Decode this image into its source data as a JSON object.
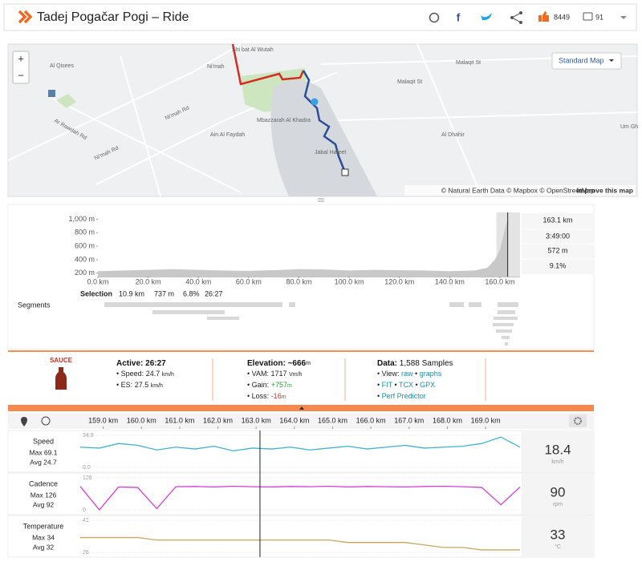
{
  "header": {
    "title": "Tadej Pogačar Pogi – Ride",
    "likes": 8449,
    "comments": 91
  },
  "map": {
    "labels": [
      "Al Qisees",
      "Ni'mah",
      "Shi bat Al Wutah",
      "Malaqit St",
      "Malaqit St",
      "Ar Rawdah Rd",
      "Ni'mah Rd",
      "Ni'mah Rd",
      "Mbazzarah Al Khadra",
      "Ain Al Faydah",
      "Jabal Hafeet",
      "Al Dhahir",
      "Um Gh"
    ],
    "style": "Standard Map",
    "zoom_in": "+",
    "zoom_out": "−",
    "attribution": "© Natural Earth Data © Mapbox © OpenStreetMap",
    "attribution_link": "Improve this map"
  },
  "elevation": {
    "xlim": [
      0,
      168
    ],
    "ylim": [
      150,
      1100
    ],
    "xticks": [
      {
        "value": 0,
        "label": "0.0 km"
      },
      {
        "value": 20,
        "label": "20.0 km"
      },
      {
        "value": 40,
        "label": "40.0 km"
      },
      {
        "value": 60,
        "label": "60.0 km"
      },
      {
        "value": 80,
        "label": "80.0 km"
      },
      {
        "value": 100,
        "label": "100.0 km"
      },
      {
        "value": 120,
        "label": "120.0 km"
      },
      {
        "value": 140,
        "label": "140.0 km"
      },
      {
        "value": 160,
        "label": "160.0 km"
      }
    ],
    "yticks": [
      {
        "value": 1000,
        "label": "1,000 m"
      },
      {
        "value": 800,
        "label": "800 m"
      },
      {
        "value": 600,
        "label": "600 m"
      },
      {
        "value": 400,
        "label": "400 m"
      },
      {
        "value": 200,
        "label": "200 m"
      }
    ],
    "x": [
      0,
      10,
      20,
      30,
      40,
      50,
      60,
      70,
      80,
      90,
      100,
      110,
      120,
      130,
      140,
      150,
      155,
      158,
      160,
      162,
      163.1
    ],
    "values": [
      230,
      240,
      250,
      260,
      250,
      240,
      235,
      245,
      260,
      255,
      240,
      250,
      245,
      240,
      230,
      240,
      280,
      400,
      550,
      850,
      1000
    ],
    "stats": [
      "163.1 km",
      "3:49:00",
      "572 m",
      "9.1%"
    ]
  },
  "selection": {
    "label": "Selection",
    "values": [
      "10.9 km",
      "737 m",
      "6.8%",
      "26:27"
    ]
  },
  "segments_label": "Segments",
  "info": {
    "logo": "SAUCE",
    "active": {
      "label": "Active:",
      "value": "26:27",
      "lines": [
        [
          "• Speed:",
          "24.7",
          "km/h"
        ],
        [
          "• ES:",
          "27.5",
          "km/h"
        ]
      ]
    },
    "elevation": {
      "label": "Elevation:",
      "value": "~666",
      "unit": "m",
      "lines": [
        [
          "• VAM:",
          "1717",
          "Vm/h"
        ],
        [
          "• Gain:",
          "+757",
          "m"
        ],
        [
          "• Loss:",
          "-16",
          "m"
        ]
      ]
    },
    "data": {
      "label": "Data:",
      "value": "1,588 Samples",
      "view": "• View:",
      "raw": "raw",
      "graphs": "graphs",
      "formats": [
        "FIT",
        "TCX",
        "GPX"
      ],
      "perf": "Perf Predictor"
    }
  },
  "streams": {
    "xlim": [
      158.4,
      169.9
    ],
    "cursor": 163.1,
    "xticks": [
      {
        "value": 159,
        "label": "159.0 km"
      },
      {
        "value": 160,
        "label": "160.0 km"
      },
      {
        "value": 161,
        "label": "161.0 km"
      },
      {
        "value": 162,
        "label": "162.0 km"
      },
      {
        "value": 163,
        "label": "163.0 km"
      },
      {
        "value": 164,
        "label": "164.0 km"
      },
      {
        "value": 165,
        "label": "165.0 km"
      },
      {
        "value": 166,
        "label": "166.0 km"
      },
      {
        "value": 167,
        "label": "167.0 km"
      },
      {
        "value": 168,
        "label": "168.0 km"
      },
      {
        "value": 169,
        "label": "169.0 km"
      }
    ],
    "x": [
      158.4,
      158.9,
      159.4,
      159.9,
      160.4,
      160.9,
      161.4,
      161.9,
      162.4,
      162.9,
      163.4,
      163.9,
      164.4,
      164.9,
      165.4,
      165.9,
      166.4,
      166.9,
      167.4,
      167.9,
      168.4,
      168.9,
      169.4,
      169.9
    ],
    "rows": [
      {
        "name": "Speed",
        "max": "Max 69.1",
        "avg": "Avg 24.7",
        "color": "#3fb3cf",
        "ylim": [
          0,
          34.9
        ],
        "yticks": [
          34.9,
          {
            "value": 0,
            "label": "0.0"
          }
        ],
        "current": 18.4,
        "unit": "km/h",
        "values": [
          22,
          21,
          26,
          24,
          19,
          22,
          20,
          23,
          18,
          21,
          20,
          22,
          19,
          21,
          23,
          20,
          22,
          24,
          21,
          22,
          23,
          26,
          33,
          22
        ]
      },
      {
        "name": "Cadence",
        "max": "Max 126",
        "avg": "Avg 92",
        "color": "#d43fd4",
        "ylim": [
          0,
          126
        ],
        "yticks": [
          126,
          0
        ],
        "current": 90,
        "unit": "rpm",
        "values": [
          92,
          0,
          90,
          88,
          5,
          91,
          92,
          90,
          93,
          91,
          90,
          92,
          91,
          93,
          90,
          92,
          91,
          90,
          92,
          93,
          91,
          88,
          20,
          90
        ]
      },
      {
        "name": "Temperature",
        "max": "Max 34",
        "avg": "Avg 32",
        "color": "#c9a65e",
        "ylim": [
          28,
          41
        ],
        "yticks": [
          41,
          28
        ],
        "current": 33,
        "unit": "°C",
        "values": [
          34,
          34,
          34,
          34,
          33,
          33,
          33,
          33,
          33,
          33,
          33,
          33,
          33,
          33,
          32,
          32,
          32,
          32,
          31,
          30,
          30,
          29,
          29,
          29
        ]
      }
    ]
  }
}
